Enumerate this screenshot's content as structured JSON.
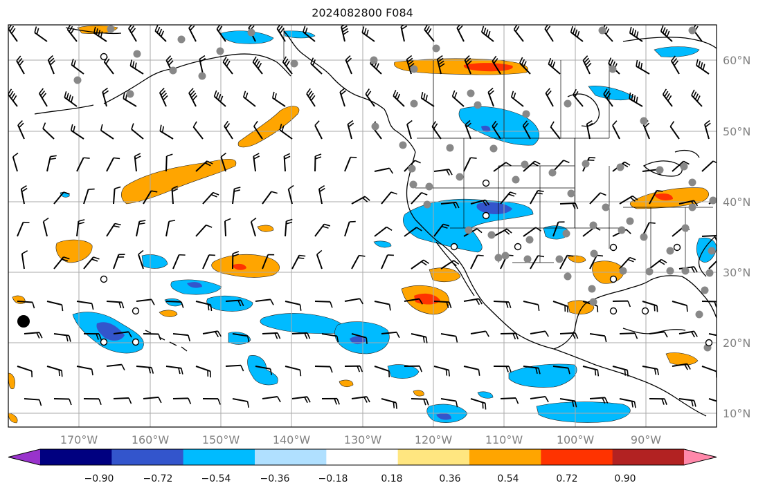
{
  "title": "2024082800 F084",
  "map": {
    "lon_range": [
      -180,
      -80
    ],
    "lat_range": [
      8,
      65
    ],
    "lat_labels": [
      "60°N",
      "50°N",
      "40°N",
      "30°N",
      "20°N",
      "10°N"
    ],
    "lon_labels": [
      "170°W",
      "160°W",
      "150°W",
      "140°W",
      "130°W",
      "120°W",
      "110°W",
      "100°W",
      "90°W"
    ],
    "gridlines": true
  },
  "colorbar": {
    "tick_labels": [
      "−0.90",
      "−0.72",
      "−0.54",
      "−0.36",
      "−0.18",
      "0.18",
      "0.36",
      "0.54",
      "0.72",
      "0.90"
    ],
    "colors": [
      "#9933cc",
      "#000080",
      "#3355cc",
      "#00bbff",
      "#b0e0ff",
      "#ffffff",
      "#ffe680",
      "#ffa500",
      "#ff3300",
      "#b22222",
      "#ff88aa"
    ],
    "extend": "both"
  }
}
